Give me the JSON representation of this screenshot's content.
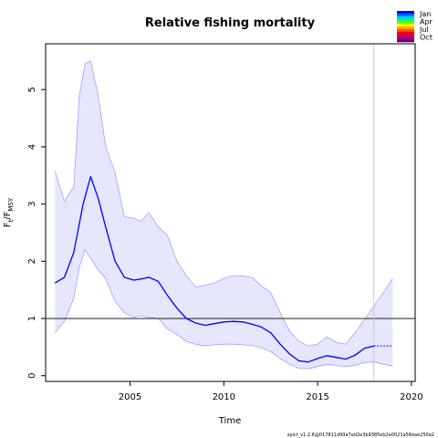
{
  "chart_data": {
    "type": "line",
    "title": "Relative fishing mortality",
    "xlabel": "Time",
    "ylabel": {
      "main": "F",
      "sub1": "t",
      "sep": "/F",
      "sub2": "MSY"
    },
    "xlim": [
      2000.5,
      2020.2
    ],
    "ylim": [
      -0.1,
      5.8
    ],
    "xticks": [
      "2005",
      "2010",
      "2015",
      "2020"
    ],
    "yticks": [
      "0",
      "1",
      "2",
      "3",
      "4",
      "5"
    ],
    "reference_line": 1,
    "vertical_marker": 2018,
    "grid": false,
    "colors": {
      "estimate": "#0000ff",
      "ci_fill": "#e6e6ff",
      "ci_edge": "#a0a0ff",
      "reference": "#000000",
      "marker": "#c8c8c8"
    },
    "estimate": {
      "x": [
        2001.0,
        2001.5,
        2002.0,
        2002.5,
        2002.9,
        2003.3,
        2003.7,
        2004.2,
        2004.7,
        2005.2,
        2005.6,
        2006.0,
        2006.5,
        2007.0,
        2007.5,
        2008.0,
        2008.5,
        2009.0,
        2009.5,
        2010.0,
        2010.5,
        2011.0,
        2011.5,
        2012.0,
        2012.5,
        2013.0,
        2013.5,
        2014.0,
        2014.5,
        2015.0,
        2015.5,
        2016.0,
        2016.5,
        2017.0,
        2017.5,
        2018.0
      ],
      "y": [
        1.62,
        1.72,
        2.15,
        3.0,
        3.48,
        3.1,
        2.6,
        2.0,
        1.72,
        1.67,
        1.69,
        1.72,
        1.65,
        1.4,
        1.18,
        1.0,
        0.92,
        0.88,
        0.91,
        0.94,
        0.95,
        0.94,
        0.9,
        0.85,
        0.75,
        0.55,
        0.38,
        0.26,
        0.24,
        0.3,
        0.35,
        0.32,
        0.29,
        0.36,
        0.48,
        0.52
      ]
    },
    "forecast": {
      "x": [
        2018.0,
        2019.0
      ],
      "y": [
        0.52,
        0.52
      ]
    },
    "ci": {
      "x": [
        2001.0,
        2001.5,
        2002.0,
        2002.3,
        2002.6,
        2002.9,
        2003.3,
        2003.7,
        2004.2,
        2004.7,
        2005.2,
        2005.6,
        2006.0,
        2006.5,
        2007.0,
        2007.5,
        2008.0,
        2008.5,
        2009.0,
        2009.5,
        2010.0,
        2010.5,
        2011.0,
        2011.5,
        2012.0,
        2012.5,
        2013.0,
        2013.5,
        2014.0,
        2014.5,
        2015.0,
        2015.5,
        2016.0,
        2016.5,
        2017.0,
        2017.5,
        2018.0,
        2018.5,
        2019.0
      ],
      "lower": [
        0.75,
        0.95,
        1.35,
        1.9,
        2.2,
        2.05,
        1.85,
        1.7,
        1.3,
        1.1,
        1.02,
        1.05,
        1.02,
        1.0,
        0.82,
        0.72,
        0.6,
        0.55,
        0.52,
        0.54,
        0.55,
        0.55,
        0.54,
        0.53,
        0.49,
        0.42,
        0.3,
        0.2,
        0.13,
        0.12,
        0.16,
        0.2,
        0.18,
        0.16,
        0.18,
        0.23,
        0.24,
        0.2,
        0.17
      ],
      "upper": [
        3.58,
        3.05,
        3.3,
        4.9,
        5.45,
        5.5,
        4.9,
        4.0,
        3.55,
        2.78,
        2.75,
        2.7,
        2.85,
        2.6,
        2.45,
        2.0,
        1.75,
        1.55,
        1.58,
        1.62,
        1.7,
        1.75,
        1.74,
        1.72,
        1.57,
        1.45,
        1.1,
        0.78,
        0.6,
        0.52,
        0.55,
        0.68,
        0.58,
        0.55,
        0.75,
        0.98,
        1.22,
        1.45,
        1.7
      ]
    },
    "legend": {
      "labels": [
        "Jan",
        "Apr",
        "Jul",
        "Oct"
      ],
      "colors": [
        "#0000ff",
        "#0066ff",
        "#00ccff",
        "#00ff66",
        "#66ff00",
        "#ffff00",
        "#ffaa00",
        "#ff5500",
        "#ff0000",
        "#cc0066",
        "#990099",
        "#660066"
      ]
    },
    "footnote": "spict_v1.2.6@017811d99a7ed2e3b9385eb2e0021a58eae250e2"
  }
}
